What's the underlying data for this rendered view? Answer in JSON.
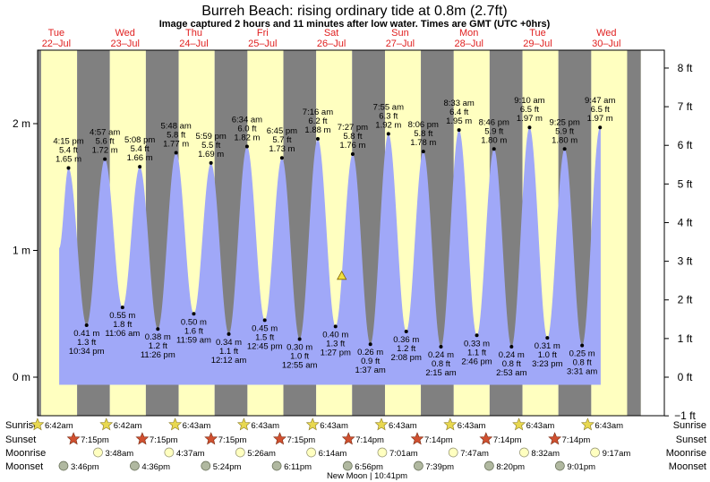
{
  "title": "Burreh Beach: rising  ordinary tide at 0.8m (2.7ft)",
  "subtitle": "Image captured 2 hours and 11 minutes after low water. Times are GMT (UTC +0hrs)",
  "days": [
    {
      "dow": "Tue",
      "date": "22–Jul"
    },
    {
      "dow": "Wed",
      "date": "23–Jul"
    },
    {
      "dow": "Thu",
      "date": "24–Jul"
    },
    {
      "dow": "Fri",
      "date": "25–Jul"
    },
    {
      "dow": "Sat",
      "date": "26–Jul"
    },
    {
      "dow": "Sun",
      "date": "27–Jul"
    },
    {
      "dow": "Mon",
      "date": "28–Jul"
    },
    {
      "dow": "Tue",
      "date": "29–Jul"
    },
    {
      "dow": "Wed",
      "date": "30–Jul"
    }
  ],
  "rows": {
    "sunrise": "Sunrise",
    "sunset": "Sunset",
    "moonrise": "Moonrise",
    "moonset": "Moonset"
  },
  "colors": {
    "day": "#ffffc0",
    "night": "#808080",
    "water": "#a0a8f8",
    "sun": "#e8d850",
    "sunset": "#d05030",
    "moonrise": "#ffffc0",
    "moonset": "#b0b8a0"
  },
  "moon_phase": "New Moon | 10:41pm",
  "chart_data": {
    "type": "area",
    "y_left_unit": "m",
    "y_right_unit": "ft",
    "y_left_ticks": [
      "0 m",
      "1 m",
      "2 m"
    ],
    "y_right_ticks": [
      "−1 ft",
      "0 ft",
      "1 ft",
      "2 ft",
      "3 ft",
      "4 ft",
      "5 ft",
      "6 ft",
      "7 ft",
      "8 ft"
    ],
    "current_level_m": 0.8,
    "tides": [
      {
        "t": 16.25,
        "type": "high",
        "time": "4:15 pm",
        "ft": "5.4 ft",
        "m": 1.65
      },
      {
        "t": 22.567,
        "type": "low",
        "time": "10:34 pm",
        "ft": "1.3 ft",
        "m": 0.41
      },
      {
        "t": 28.95,
        "type": "high",
        "time": "4:57 am",
        "ft": "5.6 ft",
        "m": 1.72
      },
      {
        "t": 35.1,
        "type": "low",
        "time": "11:06 am",
        "ft": "1.8 ft",
        "m": 0.55
      },
      {
        "t": 41.133,
        "type": "high",
        "time": "5:08 pm",
        "ft": "5.4 ft",
        "m": 1.66
      },
      {
        "t": 47.433,
        "type": "low",
        "time": "11:26 pm",
        "ft": "1.2 ft",
        "m": 0.38
      },
      {
        "t": 53.8,
        "type": "high",
        "time": "5:48 am",
        "ft": "5.8 ft",
        "m": 1.77
      },
      {
        "t": 59.983,
        "type": "low",
        "time": "11:59 am",
        "ft": "1.6 ft",
        "m": 0.5
      },
      {
        "t": 65.983,
        "type": "high",
        "time": "5:59 pm",
        "ft": "5.5 ft",
        "m": 1.69
      },
      {
        "t": 72.2,
        "type": "low",
        "time": "12:12 am",
        "ft": "1.1 ft",
        "m": 0.34
      },
      {
        "t": 78.567,
        "type": "high",
        "time": "6:34 am",
        "ft": "6.0 ft",
        "m": 1.82
      },
      {
        "t": 84.75,
        "type": "low",
        "time": "12:45 pm",
        "ft": "1.5 ft",
        "m": 0.45
      },
      {
        "t": 90.75,
        "type": "high",
        "time": "6:45 pm",
        "ft": "5.7 ft",
        "m": 1.73
      },
      {
        "t": 96.917,
        "type": "low",
        "time": "12:55 am",
        "ft": "1.0 ft",
        "m": 0.3
      },
      {
        "t": 103.267,
        "type": "high",
        "time": "7:16 am",
        "ft": "6.2 ft",
        "m": 1.88
      },
      {
        "t": 109.45,
        "type": "low",
        "time": "1:27 pm",
        "ft": "1.3 ft",
        "m": 0.4
      },
      {
        "t": 115.45,
        "type": "high",
        "time": "7:27 pm",
        "ft": "5.8 ft",
        "m": 1.76
      },
      {
        "t": 121.617,
        "type": "low",
        "time": "1:37 am",
        "ft": "0.9 ft",
        "m": 0.26
      },
      {
        "t": 127.917,
        "type": "high",
        "time": "7:55 am",
        "ft": "6.3 ft",
        "m": 1.92
      },
      {
        "t": 134.133,
        "type": "low",
        "time": "2:08 pm",
        "ft": "1.2 ft",
        "m": 0.36
      },
      {
        "t": 140.1,
        "type": "high",
        "time": "8:06 pm",
        "ft": "5.8 ft",
        "m": 1.78
      },
      {
        "t": 146.25,
        "type": "low",
        "time": "2:15 am",
        "ft": "0.8 ft",
        "m": 0.24
      },
      {
        "t": 152.55,
        "type": "high",
        "time": "8:33 am",
        "ft": "6.4 ft",
        "m": 1.95
      },
      {
        "t": 158.767,
        "type": "low",
        "time": "2:46 pm",
        "ft": "1.1 ft",
        "m": 0.33
      },
      {
        "t": 164.767,
        "type": "high",
        "time": "8:46 pm",
        "ft": "5.9 ft",
        "m": 1.8
      },
      {
        "t": 170.883,
        "type": "low",
        "time": "2:53 am",
        "ft": "0.8 ft",
        "m": 0.24
      },
      {
        "t": 177.167,
        "type": "high",
        "time": "9:10 am",
        "ft": "6.5 ft",
        "m": 1.97
      },
      {
        "t": 183.383,
        "type": "low",
        "time": "3:23 pm",
        "ft": "1.0 ft",
        "m": 0.31
      },
      {
        "t": 189.417,
        "type": "high",
        "time": "9:25 pm",
        "ft": "5.9 ft",
        "m": 1.8
      },
      {
        "t": 195.517,
        "type": "low",
        "time": "3:31 am",
        "ft": "0.8 ft",
        "m": 0.25
      },
      {
        "t": 201.783,
        "type": "high",
        "time": "9:47 am",
        "ft": "6.5 ft",
        "m": 1.97
      }
    ],
    "sunrise": [
      "6:42am",
      "6:42am",
      "6:43am",
      "6:43am",
      "6:43am",
      "6:43am",
      "6:43am",
      "6:43am",
      "6:43am"
    ],
    "sunset": [
      "7:15pm",
      "7:15pm",
      "7:15pm",
      "7:15pm",
      "7:14pm",
      "7:14pm",
      "7:14pm",
      "7:14pm"
    ],
    "moonrise": [
      "3:48am",
      "4:37am",
      "5:26am",
      "6:14am",
      "7:01am",
      "7:47am",
      "8:32am",
      "9:17am"
    ],
    "moonset": [
      "3:46pm",
      "4:36pm",
      "5:24pm",
      "6:11pm",
      "6:56pm",
      "7:39pm",
      "8:20pm",
      "9:01pm"
    ]
  }
}
